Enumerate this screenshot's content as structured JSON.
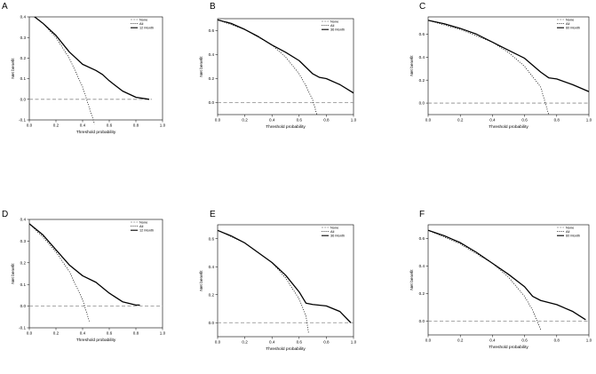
{
  "chart_data": [
    {
      "panel": "A",
      "type": "line",
      "xlabel": "Threshold probability",
      "ylabel": "Net benefit",
      "xlim": [
        0.0,
        1.0
      ],
      "ylim": [
        -0.1,
        0.4
      ],
      "xticks": [
        "0.0",
        "0.2",
        "0.4",
        "0.6",
        "0.8",
        "1.0"
      ],
      "yticks": [
        "-0.1",
        "0.0",
        "0.1",
        "0.2",
        "0.3",
        "0.4"
      ],
      "legend_position": "top-right",
      "series": [
        {
          "name": "None",
          "style": "dashed",
          "x": [
            0.0,
            0.92
          ],
          "y": [
            0.0,
            0.0
          ]
        },
        {
          "name": "All",
          "style": "dotted",
          "x": [
            0.0,
            0.1,
            0.2,
            0.3,
            0.4,
            0.45,
            0.49
          ],
          "y": [
            0.42,
            0.37,
            0.3,
            0.2,
            0.06,
            -0.04,
            -0.12
          ]
        },
        {
          "name": "12 Month",
          "style": "solid",
          "x": [
            0.0,
            0.1,
            0.2,
            0.3,
            0.4,
            0.5,
            0.55,
            0.6,
            0.7,
            0.8,
            0.9
          ],
          "y": [
            0.42,
            0.37,
            0.31,
            0.23,
            0.17,
            0.14,
            0.12,
            0.09,
            0.04,
            0.01,
            0.0
          ]
        }
      ]
    },
    {
      "panel": "B",
      "type": "line",
      "xlabel": "Threshold probability",
      "ylabel": "Net benefit",
      "xlim": [
        0.0,
        1.0
      ],
      "ylim": [
        -0.1,
        0.7
      ],
      "xticks": [
        "0.0",
        "0.2",
        "0.4",
        "0.6",
        "0.8",
        "1.0"
      ],
      "yticks": [
        "0.0",
        "0.2",
        "0.4",
        "0.6"
      ],
      "legend_position": "top-right",
      "series": [
        {
          "name": "None",
          "style": "dashed",
          "x": [
            0.0,
            1.0
          ],
          "y": [
            0.0,
            0.0
          ]
        },
        {
          "name": "All",
          "style": "dotted",
          "x": [
            0.0,
            0.2,
            0.4,
            0.5,
            0.6,
            0.65,
            0.7,
            0.73
          ],
          "y": [
            0.69,
            0.61,
            0.48,
            0.38,
            0.24,
            0.14,
            0.02,
            -0.1
          ]
        },
        {
          "name": "36 Month",
          "style": "solid",
          "x": [
            0.0,
            0.1,
            0.2,
            0.3,
            0.4,
            0.5,
            0.6,
            0.7,
            0.75,
            0.8,
            0.9,
            1.0
          ],
          "y": [
            0.69,
            0.66,
            0.61,
            0.55,
            0.48,
            0.42,
            0.35,
            0.24,
            0.21,
            0.2,
            0.15,
            0.08
          ]
        }
      ]
    },
    {
      "panel": "C",
      "type": "line",
      "xlabel": "Threshold probability",
      "ylabel": "Net benefit",
      "xlim": [
        0.0,
        1.0
      ],
      "ylim": [
        -0.1,
        0.75
      ],
      "xticks": [
        "0.0",
        "0.2",
        "0.4",
        "0.6",
        "0.8",
        "1.0"
      ],
      "yticks": [
        "0.0",
        "0.2",
        "0.4",
        "0.6"
      ],
      "legend_position": "top-right",
      "series": [
        {
          "name": "None",
          "style": "dashed",
          "x": [
            0.0,
            1.0
          ],
          "y": [
            0.0,
            0.0
          ]
        },
        {
          "name": "All",
          "style": "dotted",
          "x": [
            0.0,
            0.2,
            0.4,
            0.5,
            0.6,
            0.7,
            0.75
          ],
          "y": [
            0.72,
            0.64,
            0.53,
            0.44,
            0.32,
            0.14,
            -0.1
          ]
        },
        {
          "name": "60 Month",
          "style": "solid",
          "x": [
            0.0,
            0.1,
            0.2,
            0.3,
            0.4,
            0.5,
            0.6,
            0.7,
            0.75,
            0.8,
            0.9,
            1.0
          ],
          "y": [
            0.72,
            0.69,
            0.65,
            0.6,
            0.53,
            0.46,
            0.39,
            0.27,
            0.22,
            0.21,
            0.16,
            0.1
          ]
        }
      ]
    },
    {
      "panel": "D",
      "type": "line",
      "xlabel": "Threshold probability",
      "ylabel": "Net benefit",
      "xlim": [
        0.0,
        1.0
      ],
      "ylim": [
        -0.1,
        0.4
      ],
      "xticks": [
        "0.0",
        "0.2",
        "0.4",
        "0.6",
        "0.8",
        "1.0"
      ],
      "yticks": [
        "-0.1",
        "0.0",
        "0.1",
        "0.2",
        "0.3",
        "0.4"
      ],
      "legend_position": "top-right",
      "series": [
        {
          "name": "None",
          "style": "dashed",
          "x": [
            0.0,
            1.0
          ],
          "y": [
            0.0,
            0.0
          ]
        },
        {
          "name": "All",
          "style": "dotted",
          "x": [
            0.0,
            0.1,
            0.2,
            0.3,
            0.4,
            0.45
          ],
          "y": [
            0.38,
            0.32,
            0.25,
            0.16,
            0.03,
            -0.07
          ]
        },
        {
          "name": "12 Month",
          "style": "solid",
          "x": [
            0.0,
            0.1,
            0.2,
            0.3,
            0.4,
            0.5,
            0.6,
            0.7,
            0.8,
            0.83
          ],
          "y": [
            0.38,
            0.33,
            0.26,
            0.19,
            0.14,
            0.11,
            0.06,
            0.02,
            0.005,
            0.005
          ]
        }
      ]
    },
    {
      "panel": "E",
      "type": "line",
      "xlabel": "Threshold probability",
      "ylabel": "Net benefit",
      "xlim": [
        0.0,
        1.0
      ],
      "ylim": [
        -0.1,
        0.7
      ],
      "xticks": [
        "0.0",
        "0.2",
        "0.4",
        "0.6",
        "0.8",
        "1.0"
      ],
      "yticks": [
        "0.0",
        "0.2",
        "0.4",
        "0.6"
      ],
      "legend_position": "top-right",
      "series": [
        {
          "name": "None",
          "style": "dashed",
          "x": [
            0.0,
            1.0
          ],
          "y": [
            0.0,
            0.0
          ]
        },
        {
          "name": "All",
          "style": "dotted",
          "x": [
            0.0,
            0.2,
            0.4,
            0.5,
            0.6,
            0.65,
            0.67
          ],
          "y": [
            0.66,
            0.57,
            0.43,
            0.32,
            0.17,
            0.05,
            -0.08
          ]
        },
        {
          "name": "36 Month",
          "style": "solid",
          "x": [
            0.0,
            0.1,
            0.2,
            0.3,
            0.4,
            0.5,
            0.6,
            0.65,
            0.7,
            0.8,
            0.9,
            0.98
          ],
          "y": [
            0.66,
            0.62,
            0.57,
            0.5,
            0.43,
            0.34,
            0.22,
            0.14,
            0.13,
            0.12,
            0.08,
            0.0
          ]
        }
      ]
    },
    {
      "panel": "F",
      "type": "line",
      "xlabel": "Threshold probability",
      "ylabel": "Net benefit",
      "xlim": [
        0.0,
        1.0
      ],
      "ylim": [
        -0.1,
        0.7
      ],
      "xticks": [
        "0.0",
        "0.2",
        "0.4",
        "0.6",
        "0.8",
        "1.0"
      ],
      "yticks": [
        "0.0",
        "0.2",
        "0.4",
        "0.6"
      ],
      "legend_position": "top-right",
      "series": [
        {
          "name": "None",
          "style": "dashed",
          "x": [
            0.0,
            1.0
          ],
          "y": [
            0.0,
            0.0
          ]
        },
        {
          "name": "All",
          "style": "dotted",
          "x": [
            0.0,
            0.2,
            0.4,
            0.5,
            0.6,
            0.65,
            0.7
          ],
          "y": [
            0.66,
            0.56,
            0.42,
            0.32,
            0.18,
            0.08,
            -0.06
          ]
        },
        {
          "name": "60 Month",
          "style": "solid",
          "x": [
            0.0,
            0.1,
            0.2,
            0.3,
            0.4,
            0.5,
            0.6,
            0.65,
            0.7,
            0.8,
            0.9,
            0.98
          ],
          "y": [
            0.66,
            0.62,
            0.57,
            0.5,
            0.42,
            0.34,
            0.25,
            0.18,
            0.15,
            0.12,
            0.07,
            0.01
          ]
        }
      ]
    }
  ]
}
